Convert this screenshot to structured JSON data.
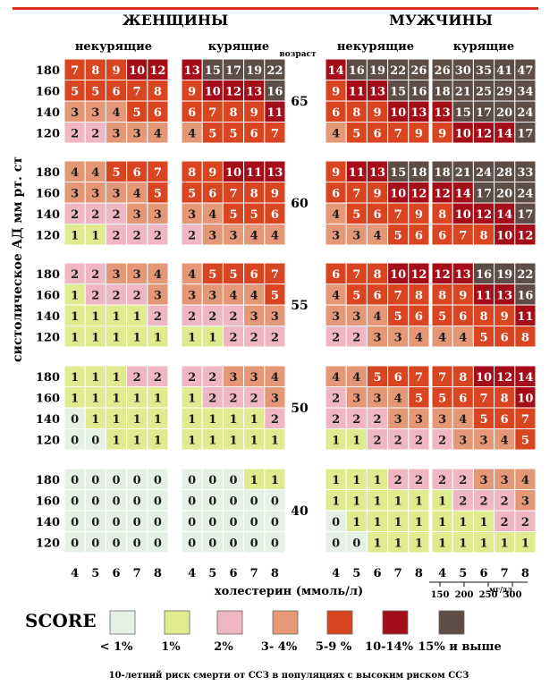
{
  "title_left": "ЖЕНЩИНЫ",
  "title_right": "МУЖЧИНЫ",
  "sub_nonsmoke": "некурящие",
  "sub_smoke": "курящие",
  "age_label": "возраст",
  "ylabel": "систолическое АД   мм рт. ст",
  "xlabel": "холестерин (ммоль/л)",
  "mg_label": "мг/дл",
  "score_label": "SCORE",
  "footer": "10-летний риск смерти от ССЗ в популяциях с высоким риском ССЗ",
  "colors": {
    "lt1": "#e6f1e6",
    "p1": "#e0eb8f",
    "p2": "#efb6c4",
    "p34": "#e59877",
    "p59": "#d94520",
    "p1014": "#a50e19",
    "p15": "#5d4d45"
  },
  "chart_data": {
    "type": "heatmap",
    "ages": [
      "65",
      "60",
      "55",
      "50",
      "40"
    ],
    "bp": [
      "180",
      "160",
      "140",
      "120"
    ],
    "chol": [
      "4",
      "5",
      "6",
      "7",
      "8"
    ],
    "mgdl": [
      "150",
      "200",
      "250",
      "300"
    ],
    "panels": {
      "65": {
        "women_non": [
          [
            7,
            8,
            9,
            10,
            12
          ],
          [
            5,
            5,
            6,
            7,
            8
          ],
          [
            3,
            3,
            4,
            5,
            6
          ],
          [
            2,
            2,
            3,
            3,
            4
          ]
        ],
        "women_smk": [
          [
            13,
            15,
            17,
            19,
            22
          ],
          [
            9,
            10,
            12,
            13,
            16
          ],
          [
            6,
            7,
            8,
            9,
            11
          ],
          [
            4,
            5,
            5,
            6,
            7
          ]
        ],
        "men_non": [
          [
            14,
            16,
            19,
            22,
            26
          ],
          [
            9,
            11,
            13,
            15,
            16
          ],
          [
            6,
            8,
            9,
            10,
            13
          ],
          [
            4,
            5,
            6,
            7,
            9
          ]
        ],
        "men_smk": [
          [
            26,
            30,
            35,
            41,
            47
          ],
          [
            18,
            21,
            25,
            29,
            34
          ],
          [
            13,
            15,
            17,
            20,
            24
          ],
          [
            9,
            10,
            12,
            14,
            17
          ]
        ]
      },
      "60": {
        "women_non": [
          [
            4,
            4,
            5,
            6,
            7
          ],
          [
            3,
            3,
            3,
            4,
            5
          ],
          [
            2,
            2,
            2,
            3,
            3
          ],
          [
            1,
            1,
            2,
            2,
            2
          ]
        ],
        "women_smk": [
          [
            8,
            9,
            10,
            11,
            13
          ],
          [
            5,
            6,
            7,
            8,
            9
          ],
          [
            3,
            4,
            5,
            5,
            6
          ],
          [
            2,
            3,
            3,
            4,
            4
          ]
        ],
        "men_non": [
          [
            9,
            11,
            13,
            15,
            18
          ],
          [
            6,
            7,
            9,
            10,
            12
          ],
          [
            4,
            5,
            6,
            7,
            9
          ],
          [
            3,
            3,
            4,
            5,
            6
          ]
        ],
        "men_smk": [
          [
            18,
            21,
            24,
            28,
            33
          ],
          [
            12,
            14,
            17,
            20,
            24
          ],
          [
            8,
            10,
            12,
            14,
            17
          ],
          [
            6,
            7,
            8,
            10,
            12
          ]
        ]
      },
      "55": {
        "women_non": [
          [
            2,
            2,
            3,
            3,
            4
          ],
          [
            1,
            2,
            2,
            2,
            3
          ],
          [
            1,
            1,
            1,
            1,
            2
          ],
          [
            1,
            1,
            1,
            1,
            1
          ]
        ],
        "women_smk": [
          [
            4,
            5,
            5,
            6,
            7
          ],
          [
            3,
            3,
            4,
            4,
            5
          ],
          [
            2,
            2,
            2,
            3,
            3
          ],
          [
            1,
            1,
            2,
            2,
            2
          ]
        ],
        "men_non": [
          [
            6,
            7,
            8,
            10,
            12
          ],
          [
            4,
            5,
            6,
            7,
            8
          ],
          [
            3,
            3,
            4,
            5,
            6
          ],
          [
            2,
            2,
            3,
            3,
            4
          ]
        ],
        "men_smk": [
          [
            12,
            13,
            16,
            19,
            22
          ],
          [
            8,
            9,
            11,
            13,
            16
          ],
          [
            5,
            6,
            8,
            9,
            11
          ],
          [
            4,
            4,
            5,
            6,
            8
          ]
        ]
      },
      "50": {
        "women_non": [
          [
            1,
            1,
            1,
            2,
            2
          ],
          [
            1,
            1,
            1,
            1,
            1
          ],
          [
            0,
            1,
            1,
            1,
            1
          ],
          [
            0,
            0,
            1,
            1,
            1
          ]
        ],
        "women_smk": [
          [
            2,
            2,
            3,
            3,
            4
          ],
          [
            1,
            2,
            2,
            2,
            3
          ],
          [
            1,
            1,
            1,
            1,
            2
          ],
          [
            1,
            1,
            1,
            1,
            1
          ]
        ],
        "men_non": [
          [
            4,
            4,
            5,
            6,
            7
          ],
          [
            2,
            3,
            3,
            4,
            5
          ],
          [
            2,
            2,
            2,
            3,
            3
          ],
          [
            1,
            1,
            2,
            2,
            2
          ]
        ],
        "men_smk": [
          [
            7,
            8,
            10,
            12,
            14
          ],
          [
            5,
            6,
            7,
            8,
            10
          ],
          [
            3,
            4,
            5,
            6,
            7
          ],
          [
            2,
            3,
            3,
            4,
            5
          ]
        ]
      },
      "40": {
        "women_non": [
          [
            0,
            0,
            0,
            0,
            0
          ],
          [
            0,
            0,
            0,
            0,
            0
          ],
          [
            0,
            0,
            0,
            0,
            0
          ],
          [
            0,
            0,
            0,
            0,
            0
          ]
        ],
        "women_smk": [
          [
            0,
            0,
            0,
            1,
            1
          ],
          [
            0,
            0,
            0,
            0,
            0
          ],
          [
            0,
            0,
            0,
            0,
            0
          ],
          [
            0,
            0,
            0,
            0,
            0
          ]
        ],
        "men_non": [
          [
            1,
            1,
            1,
            2,
            2
          ],
          [
            1,
            1,
            1,
            1,
            1
          ],
          [
            0,
            1,
            1,
            1,
            1
          ],
          [
            0,
            0,
            1,
            1,
            1
          ]
        ],
        "men_smk": [
          [
            2,
            2,
            3,
            3,
            4
          ],
          [
            1,
            2,
            2,
            2,
            3
          ],
          [
            1,
            1,
            1,
            2,
            2
          ],
          [
            1,
            1,
            1,
            1,
            1
          ]
        ]
      }
    },
    "legend": [
      {
        "key": "lt1",
        "label": "< 1%"
      },
      {
        "key": "p1",
        "label": "1%"
      },
      {
        "key": "p2",
        "label": "2%"
      },
      {
        "key": "p34",
        "label": "3- 4%"
      },
      {
        "key": "p59",
        "label": "5-9 %"
      },
      {
        "key": "p1014",
        "label": "10-14%"
      },
      {
        "key": "p15",
        "label": "15% и выше"
      }
    ]
  }
}
